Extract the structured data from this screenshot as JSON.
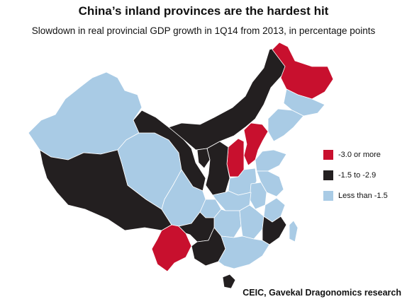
{
  "title": "China’s inland provinces are the hardest hit",
  "subtitle": "Slowdown in real provincial GDP growth in 1Q14 from 2013, in percentage points",
  "source": "CEIC, Gavekal Dragonomics research",
  "colors": {
    "red": "#c8102e",
    "black": "#231f20",
    "blue": "#a9cbe5"
  },
  "legend": [
    {
      "label": "-3.0 or more",
      "color": "#c8102e"
    },
    {
      "label": "-1.5 to -2.9",
      "color": "#231f20"
    },
    {
      "label": "Less than -1.5",
      "color": "#a9cbe5"
    }
  ],
  "provinces": [
    {
      "name": "Xinjiang",
      "category": "Less than -1.5"
    },
    {
      "name": "Tibet",
      "category": "-1.5 to -2.9"
    },
    {
      "name": "Qinghai",
      "category": "Less than -1.5"
    },
    {
      "name": "Gansu",
      "category": "-1.5 to -2.9"
    },
    {
      "name": "Inner Mongolia",
      "category": "-1.5 to -2.9"
    },
    {
      "name": "Heilongjiang",
      "category": "-3.0 or more"
    },
    {
      "name": "Jilin",
      "category": "Less than -1.5"
    },
    {
      "name": "Liaoning",
      "category": "Less than -1.5"
    },
    {
      "name": "Hebei",
      "category": "-3.0 or more"
    },
    {
      "name": "Shanxi",
      "category": "-3.0 or more"
    },
    {
      "name": "Shandong",
      "category": "Less than -1.5"
    },
    {
      "name": "Ningxia",
      "category": "-1.5 to -2.9"
    },
    {
      "name": "Shaanxi",
      "category": "-1.5 to -2.9"
    },
    {
      "name": "Sichuan",
      "category": "Less than -1.5"
    },
    {
      "name": "Yunnan",
      "category": "-3.0 or more"
    },
    {
      "name": "Guizhou",
      "category": "-1.5 to -2.9"
    },
    {
      "name": "Guangxi",
      "category": "-1.5 to -2.9"
    },
    {
      "name": "Hainan",
      "category": "-1.5 to -2.9"
    },
    {
      "name": "Chongqing",
      "category": "Less than -1.5"
    },
    {
      "name": "Hubei",
      "category": "Less than -1.5"
    },
    {
      "name": "Henan",
      "category": "Less than -1.5"
    },
    {
      "name": "Hunan",
      "category": "Less than -1.5"
    },
    {
      "name": "Guangdong",
      "category": "Less than -1.5"
    },
    {
      "name": "Fujian",
      "category": "-1.5 to -2.9"
    },
    {
      "name": "Jiangxi",
      "category": "Less than -1.5"
    },
    {
      "name": "Zhejiang",
      "category": "Less than -1.5"
    },
    {
      "name": "Anhui",
      "category": "Less than -1.5"
    },
    {
      "name": "Jiangsu",
      "category": "Less than -1.5"
    },
    {
      "name": "Taiwan",
      "category": "Less than -1.5"
    }
  ]
}
